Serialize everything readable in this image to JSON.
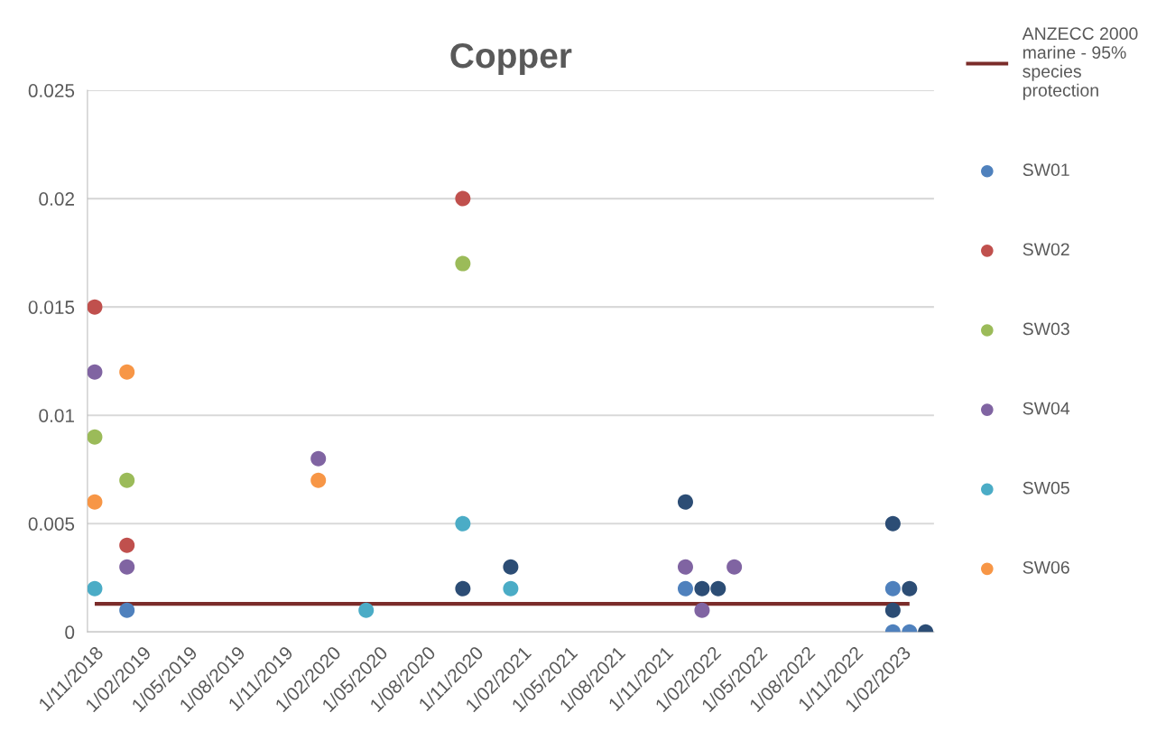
{
  "chart_data": {
    "type": "scatter",
    "title": "Copper",
    "marker": "circle",
    "grid": "y",
    "legend": "right",
    "xlim": [
      "2018-10-18",
      "2023-04-03"
    ],
    "xticks": [
      {
        "value": "2018-11-01",
        "label": "1/11/2018"
      },
      {
        "value": "2019-02-01",
        "label": "1/02/2019"
      },
      {
        "value": "2019-05-01",
        "label": "1/05/2019"
      },
      {
        "value": "2019-08-01",
        "label": "1/08/2019"
      },
      {
        "value": "2019-11-01",
        "label": "1/11/2019"
      },
      {
        "value": "2020-02-01",
        "label": "1/02/2020"
      },
      {
        "value": "2020-05-01",
        "label": "1/05/2020"
      },
      {
        "value": "2020-08-01",
        "label": "1/08/2020"
      },
      {
        "value": "2020-11-01",
        "label": "1/11/2020"
      },
      {
        "value": "2021-02-01",
        "label": "1/02/2021"
      },
      {
        "value": "2021-05-01",
        "label": "1/05/2021"
      },
      {
        "value": "2021-08-01",
        "label": "1/08/2021"
      },
      {
        "value": "2021-11-01",
        "label": "1/11/2021"
      },
      {
        "value": "2022-02-01",
        "label": "1/02/2022"
      },
      {
        "value": "2022-05-01",
        "label": "1/05/2022"
      },
      {
        "value": "2022-08-01",
        "label": "1/08/2022"
      },
      {
        "value": "2022-11-01",
        "label": "1/11/2022"
      },
      {
        "value": "2023-02-01",
        "label": "1/02/2023"
      }
    ],
    "ylim": [
      0,
      0.025
    ],
    "yticks": [
      0,
      0.005,
      0.01,
      0.015,
      0.02,
      0.025
    ],
    "series": [
      {
        "name": "ANZECC 2000\nmarine - 95%\nspecies\nprotection",
        "type": "line",
        "marker": "none",
        "color": "#7b2c2a",
        "x": [
          "2018-11-01",
          "2023-02-15"
        ],
        "values": [
          0.0013,
          0.0013
        ]
      },
      {
        "name": "SW01",
        "color": "#4f81bd",
        "x": [
          "2019-01-02",
          "2021-12-11",
          "2023-01-14",
          "2023-01-14",
          "2023-02-15"
        ],
        "values": [
          0.001,
          0.002,
          0.002,
          0,
          0
        ]
      },
      {
        "name": "SW02",
        "color": "#c0504d",
        "x": [
          "2018-11-01",
          "2019-01-02",
          "2020-10-09"
        ],
        "values": [
          0.015,
          0.004,
          0.02
        ]
      },
      {
        "name": "SW03",
        "color": "#9bbb59",
        "x": [
          "2018-11-01",
          "2019-01-02",
          "2020-10-09"
        ],
        "values": [
          0.009,
          0.007,
          0.017
        ]
      },
      {
        "name": "SW04",
        "color": "#8064a2",
        "x": [
          "2018-11-01",
          "2019-01-02",
          "2020-01-05",
          "2021-12-11",
          "2022-01-12",
          "2022-03-15"
        ],
        "values": [
          0.012,
          0.003,
          0.008,
          0.003,
          0.001,
          0.003
        ]
      },
      {
        "name": "SW05",
        "color": "#4bacc6",
        "x": [
          "2018-11-01",
          "2020-04-06",
          "2020-10-09",
          "2021-01-09"
        ],
        "values": [
          0.002,
          0.001,
          0.005,
          0.002
        ]
      },
      {
        "name": "SW06",
        "color": "#f79646",
        "x": [
          "2018-11-01",
          "2019-01-02",
          "2020-01-05"
        ],
        "values": [
          0.006,
          0.012,
          0.007
        ]
      },
      {
        "color": "#2c4d75",
        "x": [
          "2020-10-09",
          "2021-01-09",
          "2021-12-11",
          "2022-01-12",
          "2022-02-12",
          "2023-01-14",
          "2023-01-14",
          "2023-02-15",
          "2023-03-18"
        ],
        "values": [
          0.002,
          0.003,
          0.006,
          0.002,
          0.002,
          0.005,
          0.001,
          0.002,
          0
        ]
      }
    ]
  }
}
